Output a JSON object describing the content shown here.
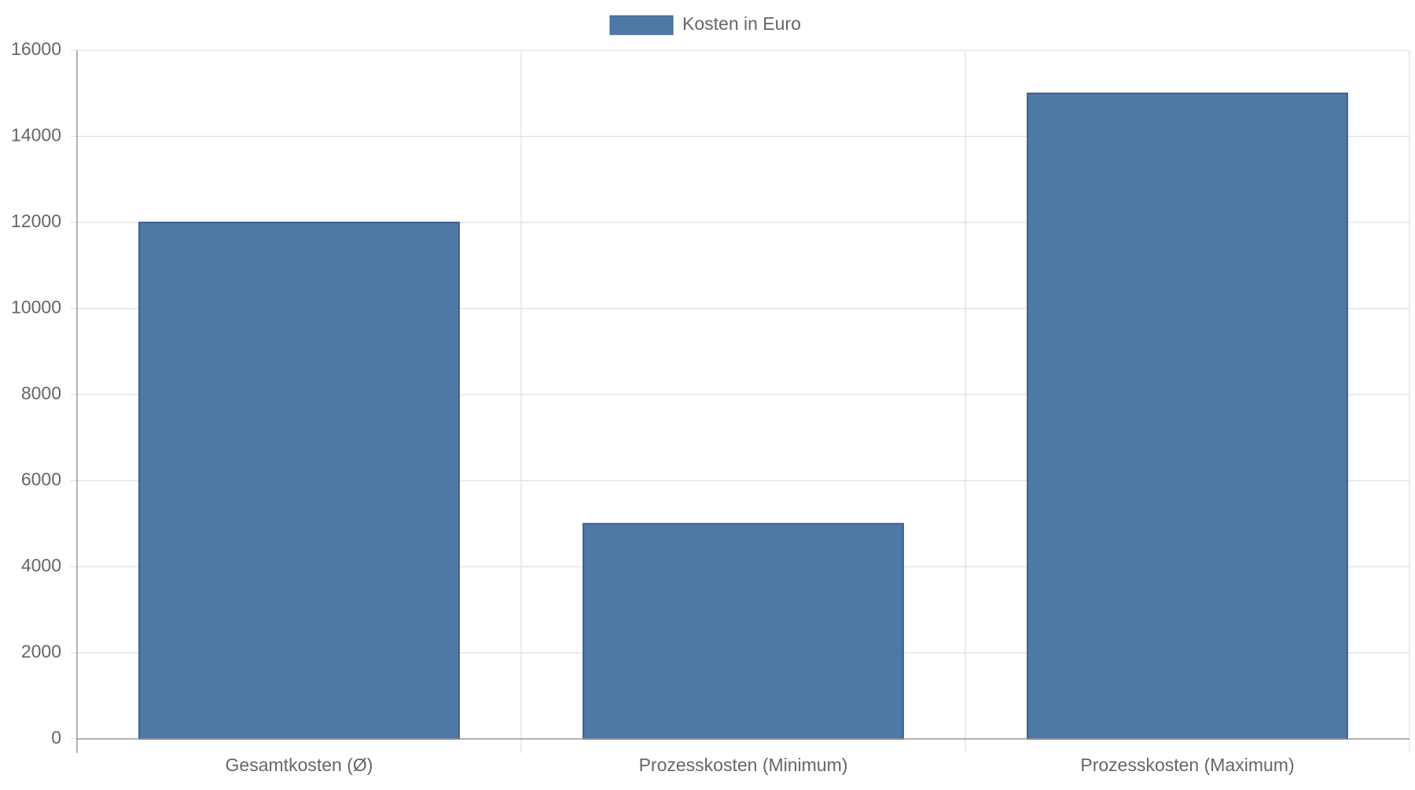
{
  "chart_data": {
    "type": "bar",
    "categories": [
      "Gesamtkosten (Ø)",
      "Prozesskosten (Minimum)",
      "Prozesskosten (Maximum)"
    ],
    "series": [
      {
        "name": "Kosten in Euro",
        "values": [
          12000,
          5000,
          15000
        ]
      }
    ],
    "ylim": [
      0,
      16000
    ],
    "yticks": [
      0,
      2000,
      4000,
      6000,
      8000,
      10000,
      12000,
      14000,
      16000
    ],
    "grid": true,
    "legend_position": "top-center",
    "colors": {
      "bar_fill": "#4e79a7",
      "bar_stroke": "#3b5f8a",
      "grid": "#e0e0e0",
      "axis": "#999999",
      "text": "#666666"
    }
  }
}
